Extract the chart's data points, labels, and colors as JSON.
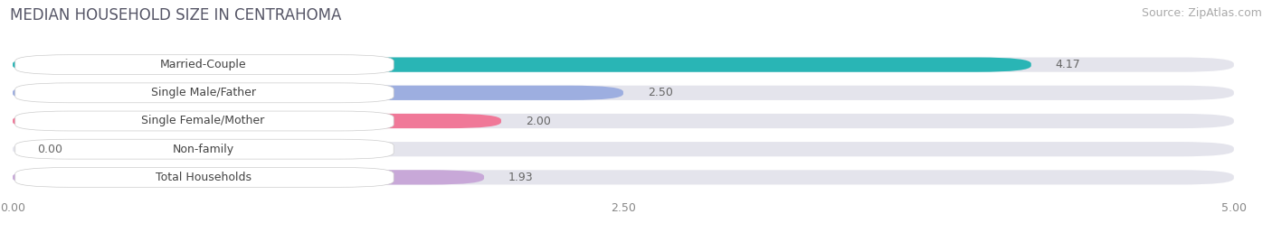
{
  "title": "MEDIAN HOUSEHOLD SIZE IN CENTRAHOMA",
  "source": "Source: ZipAtlas.com",
  "categories": [
    "Married-Couple",
    "Single Male/Father",
    "Single Female/Mother",
    "Non-family",
    "Total Households"
  ],
  "values": [
    4.17,
    2.5,
    2.0,
    0.0,
    1.93
  ],
  "bar_colors": [
    "#29b5b5",
    "#9daee0",
    "#f07898",
    "#f8c888",
    "#c8a8d8"
  ],
  "bar_bg_color": "#e4e4ec",
  "label_bg_color": "#ffffff",
  "xlim": [
    0,
    5.0
  ],
  "xticks": [
    0.0,
    2.5,
    5.0
  ],
  "xtick_labels": [
    "0.00",
    "2.50",
    "5.00"
  ],
  "background_color": "#ffffff",
  "title_fontsize": 12,
  "source_fontsize": 9,
  "label_fontsize": 9,
  "value_fontsize": 9
}
